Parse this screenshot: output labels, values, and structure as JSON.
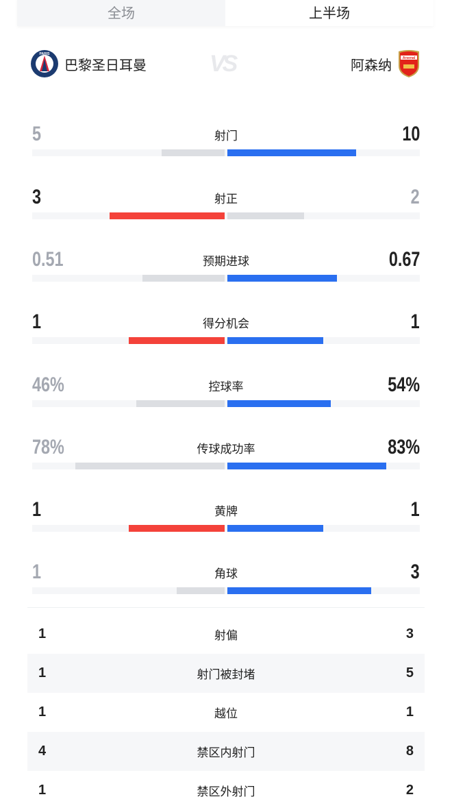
{
  "tabs": [
    {
      "label": "全场",
      "active": false
    },
    {
      "label": "上半场",
      "active": true
    }
  ],
  "home": {
    "name": "巴黎圣日耳曼",
    "crest": "psg-crest-icon",
    "crest_text": "PARIS"
  },
  "away": {
    "name": "阿森纳",
    "crest": "arsenal-crest-icon",
    "crest_text": "Arsenal"
  },
  "vs": "VS",
  "colors": {
    "home": "#f4423a",
    "away": "#2a6ff0",
    "neutral": "#dcdee2",
    "track": "#f5f6f8"
  },
  "stats": [
    {
      "label": "射门",
      "home": "5",
      "away": "10",
      "home_fill": 0.33,
      "away_fill": 0.67
    },
    {
      "label": "射正",
      "home": "3",
      "away": "2",
      "home_fill": 0.6,
      "away_fill": 0.4
    },
    {
      "label": "预期进球",
      "home": "0.51",
      "away": "0.67",
      "home_fill": 0.43,
      "away_fill": 0.57
    },
    {
      "label": "得分机会",
      "home": "1",
      "away": "1",
      "home_fill": 0.5,
      "away_fill": 0.5
    },
    {
      "label": "控球率",
      "home": "46%",
      "away": "54%",
      "home_fill": 0.46,
      "away_fill": 0.54
    },
    {
      "label": "传球成功率",
      "home": "78%",
      "away": "83%",
      "home_fill": 0.78,
      "away_fill": 0.83
    },
    {
      "label": "黄牌",
      "home": "1",
      "away": "1",
      "home_fill": 0.5,
      "away_fill": 0.5
    },
    {
      "label": "角球",
      "home": "1",
      "away": "3",
      "home_fill": 0.25,
      "away_fill": 0.75
    }
  ],
  "table": [
    {
      "label": "射偏",
      "home": "1",
      "away": "3"
    },
    {
      "label": "射门被封堵",
      "home": "1",
      "away": "5"
    },
    {
      "label": "越位",
      "home": "1",
      "away": "1"
    },
    {
      "label": "禁区内射门",
      "home": "4",
      "away": "8"
    },
    {
      "label": "禁区外射门",
      "home": "1",
      "away": "2"
    }
  ]
}
